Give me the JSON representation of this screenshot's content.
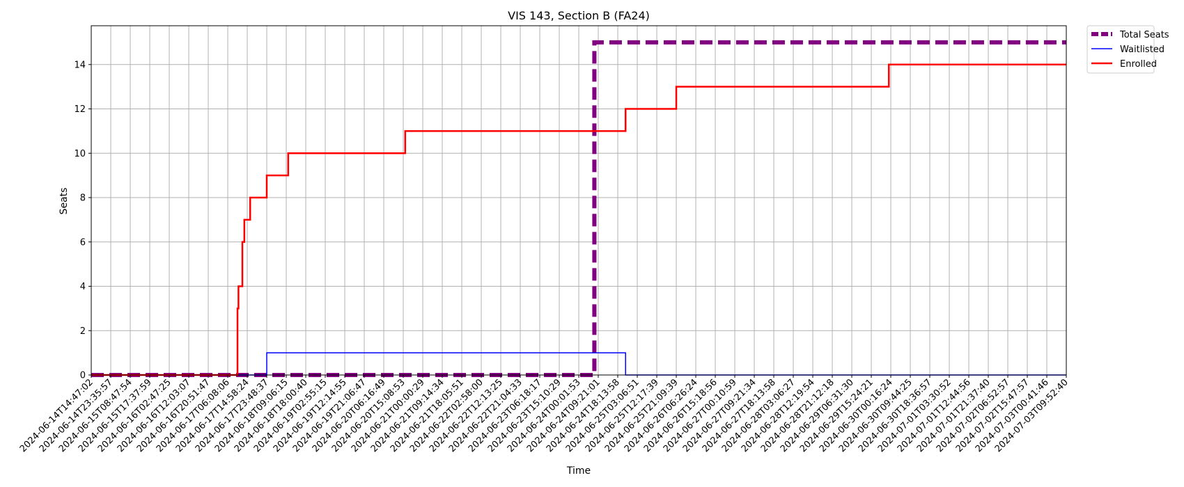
{
  "chart_data": {
    "type": "line",
    "title": "VIS 143, Section B (FA24)",
    "xlabel": "Time",
    "ylabel": "Seats",
    "ylim": [
      0,
      15.75
    ],
    "yticks": [
      0,
      2,
      4,
      6,
      8,
      10,
      12,
      14
    ],
    "grid": true,
    "legend_position": "outside-top-right",
    "x_tick_labels": [
      "2024-06-14T14:47:02",
      "2024-06-14T23:35:57",
      "2024-06-15T08:47:54",
      "2024-06-15T17:37:59",
      "2024-06-16T02:47:25",
      "2024-06-16T12:03:07",
      "2024-06-16T20:51:47",
      "2024-06-17T06:08:06",
      "2024-06-17T14:58:24",
      "2024-06-17T23:48:37",
      "2024-06-18T09:06:15",
      "2024-06-18T18:00:40",
      "2024-06-19T02:55:15",
      "2024-06-19T12:14:55",
      "2024-06-19T21:06:47",
      "2024-06-20T06:16:49",
      "2024-06-20T15:08:53",
      "2024-06-21T00:00:29",
      "2024-06-21T09:14:34",
      "2024-06-21T18:05:51",
      "2024-06-22T02:58:00",
      "2024-06-22T12:13:25",
      "2024-06-22T21:04:33",
      "2024-06-23T06:18:17",
      "2024-06-23T15:10:29",
      "2024-06-24T00:01:53",
      "2024-06-24T09:21:01",
      "2024-06-24T18:13:58",
      "2024-06-25T03:06:51",
      "2024-06-25T12:17:39",
      "2024-06-25T21:09:39",
      "2024-06-26T06:26:24",
      "2024-06-26T15:18:56",
      "2024-06-27T00:10:59",
      "2024-06-27T09:21:34",
      "2024-06-27T18:13:58",
      "2024-06-28T03:06:27",
      "2024-06-28T12:19:54",
      "2024-06-28T21:12:18",
      "2024-06-29T06:31:30",
      "2024-06-29T15:24:21",
      "2024-06-30T00:16:24",
      "2024-06-30T09:44:25",
      "2024-06-30T18:36:57",
      "2024-07-01T03:30:52",
      "2024-07-01T12:44:56",
      "2024-07-01T21:37:40",
      "2024-07-02T06:52:57",
      "2024-07-02T15:47:57",
      "2024-07-03T00:41:46",
      "2024-07-03T09:52:40"
    ],
    "series": [
      {
        "name": "Total Seats",
        "color": "#800080",
        "style": "dashed",
        "points": [
          [
            0,
            0
          ],
          [
            25.8,
            0
          ],
          [
            25.8,
            15
          ],
          [
            50,
            15
          ]
        ]
      },
      {
        "name": "Waitlisted",
        "color": "#0000ff",
        "style": "solid",
        "points": [
          [
            0,
            0
          ],
          [
            9.0,
            0
          ],
          [
            9.0,
            1
          ],
          [
            27.4,
            1
          ],
          [
            27.4,
            0
          ],
          [
            50,
            0
          ]
        ]
      },
      {
        "name": "Enrolled",
        "color": "#ff0000",
        "style": "solid",
        "points": [
          [
            0,
            0
          ],
          [
            7.5,
            0
          ],
          [
            7.5,
            3
          ],
          [
            7.55,
            3
          ],
          [
            7.55,
            4
          ],
          [
            7.75,
            4
          ],
          [
            7.75,
            6
          ],
          [
            7.85,
            6
          ],
          [
            7.85,
            7
          ],
          [
            8.15,
            7
          ],
          [
            8.15,
            8
          ],
          [
            9.0,
            8
          ],
          [
            9.0,
            9
          ],
          [
            10.1,
            9
          ],
          [
            10.1,
            10
          ],
          [
            16.1,
            10
          ],
          [
            16.1,
            11
          ],
          [
            27.4,
            11
          ],
          [
            27.4,
            12
          ],
          [
            30.0,
            12
          ],
          [
            30.0,
            13
          ],
          [
            40.9,
            13
          ],
          [
            40.9,
            14
          ],
          [
            50,
            14
          ]
        ]
      }
    ]
  }
}
